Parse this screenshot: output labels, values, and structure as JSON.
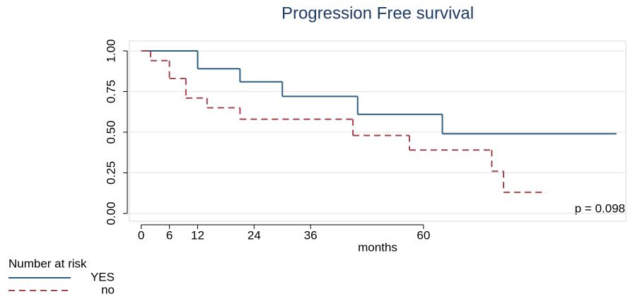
{
  "chart_data": {
    "type": "step",
    "title": "Progression Free survival",
    "x_label": "months",
    "annotation": "p = 0.098",
    "legend_title": "Number at risk",
    "xlim": [
      -2.5,
      103
    ],
    "ylim": [
      0,
      1
    ],
    "xticks": [
      0,
      6,
      12,
      24,
      36,
      60
    ],
    "yticks": [
      {
        "value": 0,
        "label": "0.00"
      },
      {
        "value": 0.25,
        "label": "0.25"
      },
      {
        "value": 0.5,
        "label": "0.50"
      },
      {
        "value": 0.75,
        "label": "0.75"
      },
      {
        "value": 1,
        "label": "1.00"
      }
    ],
    "grid": true,
    "series": [
      {
        "name": "YES",
        "color": "#2f5f83",
        "dash": false,
        "x": [
          0,
          12,
          21,
          30,
          46,
          64,
          101
        ],
        "values": [
          1,
          0.89,
          0.81,
          0.72,
          0.61,
          0.49,
          0.49
        ]
      },
      {
        "name": "no",
        "color": "#a3444b",
        "dash": true,
        "x": [
          0,
          2,
          6,
          9.5,
          14,
          21,
          45,
          57,
          74.5,
          77,
          86
        ],
        "values": [
          1,
          0.94,
          0.83,
          0.71,
          0.65,
          0.58,
          0.48,
          0.39,
          0.26,
          0.13,
          0.13
        ]
      }
    ]
  }
}
